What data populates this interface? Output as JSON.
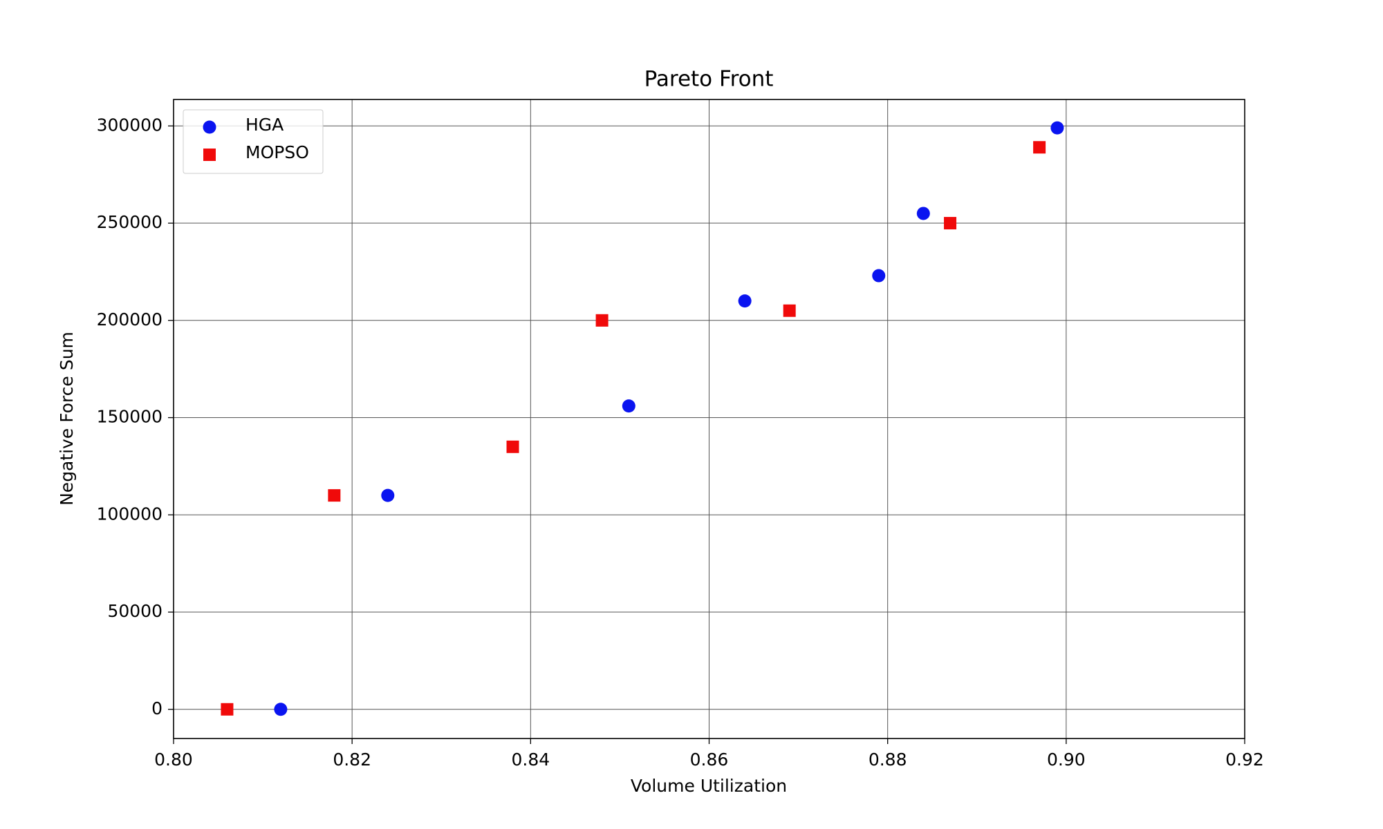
{
  "chart_data": {
    "type": "scatter",
    "title": "Pareto Front",
    "x_label": "Volume Utilization",
    "y_label": "Negative Force Sum",
    "xlim": [
      0.8,
      0.92
    ],
    "xticks": [
      {
        "value": 0.8,
        "label": "0.80"
      },
      {
        "value": 0.82,
        "label": "0.82"
      },
      {
        "value": 0.84,
        "label": "0.84"
      },
      {
        "value": 0.86,
        "label": "0.86"
      },
      {
        "value": 0.88,
        "label": "0.88"
      },
      {
        "value": 0.9,
        "label": "0.90"
      },
      {
        "value": 0.92,
        "label": "0.92"
      }
    ],
    "ylim": [
      -15000,
      313600
    ],
    "yticks": [
      0,
      50000,
      100000,
      150000,
      200000,
      250000,
      300000
    ],
    "grid": true,
    "legend": "upper left",
    "series": [
      {
        "name": "HGA",
        "color": "#0a14f0",
        "marker": "circle",
        "x": [
          0.812,
          0.824,
          0.851,
          0.864,
          0.879,
          0.884,
          0.899
        ],
        "values": [
          0,
          110000,
          156000,
          210000,
          223000,
          255000,
          299000
        ]
      },
      {
        "name": "MOPSO",
        "color": "#f00a0a",
        "marker": "square",
        "x": [
          0.806,
          0.818,
          0.838,
          0.848,
          0.869,
          0.887,
          0.897
        ],
        "values": [
          0,
          110000,
          135000,
          200000,
          205000,
          250000,
          289000
        ]
      }
    ]
  }
}
